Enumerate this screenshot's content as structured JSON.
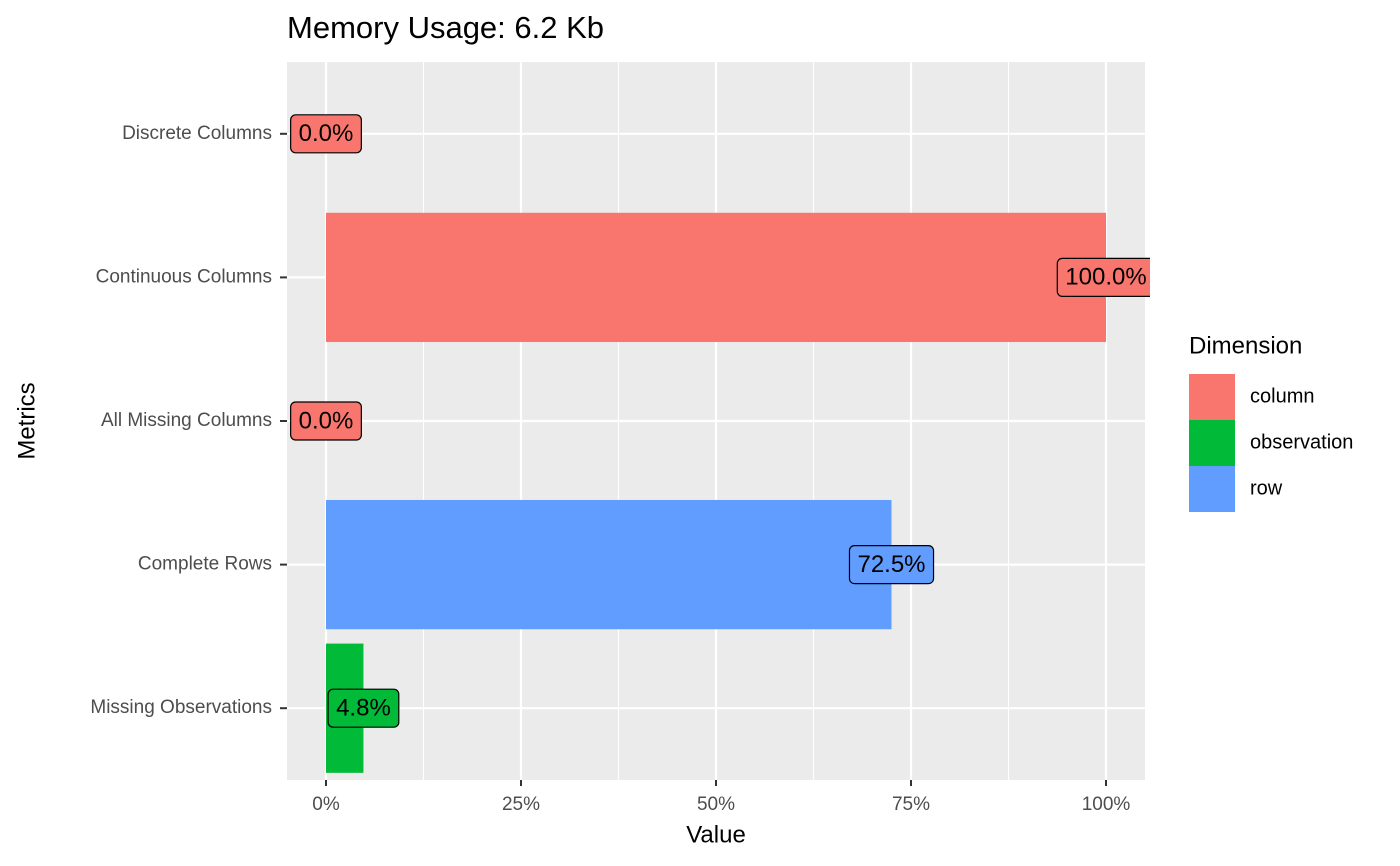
{
  "chart_data": {
    "type": "hbar",
    "title": "Memory Usage: 6.2 Kb",
    "x_label": "Value",
    "y_label": "Metrics",
    "legend_title": "Dimension",
    "legend_position": "right",
    "grid": true,
    "categories": [
      "Discrete Columns",
      "Continuous Columns",
      "All Missing Columns",
      "Complete Rows",
      "Missing Observations"
    ],
    "series": [
      {
        "name": "column",
        "color": "#F8766D",
        "values": [
          0,
          100,
          0,
          null,
          null
        ],
        "value_labels": [
          "0.0%",
          "100.0%",
          "0.0%",
          null,
          null
        ]
      },
      {
        "name": "observation",
        "color": "#00BA38",
        "values": [
          null,
          null,
          null,
          null,
          4.8
        ],
        "value_labels": [
          null,
          null,
          null,
          null,
          "4.8%"
        ]
      },
      {
        "name": "row",
        "color": "#619CFF",
        "values": [
          null,
          null,
          null,
          72.5,
          null
        ],
        "value_labels": [
          null,
          null,
          null,
          "72.5%",
          null
        ]
      }
    ],
    "xlim": [
      -5,
      105
    ],
    "xticks": [
      {
        "value": 0,
        "label": "0%"
      },
      {
        "value": 25,
        "label": "25%"
      },
      {
        "value": 50,
        "label": "50%"
      },
      {
        "value": 75,
        "label": "75%"
      },
      {
        "value": 100,
        "label": "100%"
      }
    ]
  }
}
